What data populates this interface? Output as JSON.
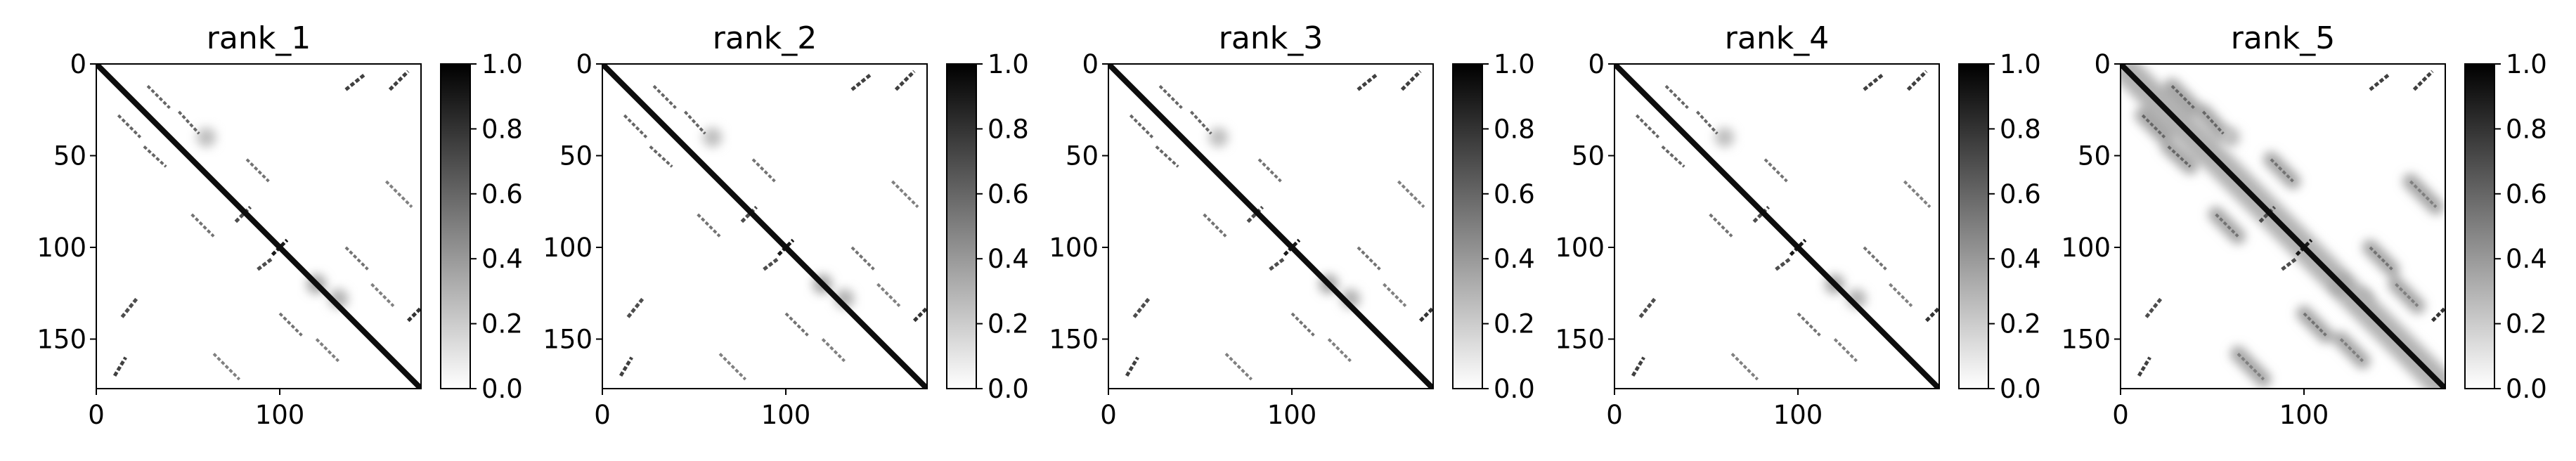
{
  "figure": {
    "background": "#ffffff",
    "colormap": "Greys (white = 0.0, black = 1.0)"
  },
  "chart_data": [
    {
      "type": "heatmap",
      "title": "rank_1",
      "xlim": [
        0,
        177
      ],
      "ylim": [
        177,
        0
      ],
      "y_inverted": true,
      "xticks": [
        0,
        100
      ],
      "yticks": [
        0,
        50,
        100,
        150
      ],
      "colorbar": {
        "range": [
          0.0,
          1.0
        ],
        "ticks": [
          "0.0",
          "0.2",
          "0.4",
          "0.6",
          "0.8",
          "1.0"
        ]
      },
      "diffuse_contacts": false
    },
    {
      "type": "heatmap",
      "title": "rank_2",
      "xlim": [
        0,
        177
      ],
      "ylim": [
        177,
        0
      ],
      "y_inverted": true,
      "xticks": [
        0,
        100
      ],
      "yticks": [
        0,
        50,
        100,
        150
      ],
      "colorbar": {
        "range": [
          0.0,
          1.0
        ],
        "ticks": [
          "0.0",
          "0.2",
          "0.4",
          "0.6",
          "0.8",
          "1.0"
        ]
      },
      "diffuse_contacts": false
    },
    {
      "type": "heatmap",
      "title": "rank_3",
      "xlim": [
        0,
        177
      ],
      "ylim": [
        177,
        0
      ],
      "y_inverted": true,
      "xticks": [
        0,
        100
      ],
      "yticks": [
        0,
        50,
        100,
        150
      ],
      "colorbar": {
        "range": [
          0.0,
          1.0
        ],
        "ticks": [
          "0.0",
          "0.2",
          "0.4",
          "0.6",
          "0.8",
          "1.0"
        ]
      },
      "diffuse_contacts": false
    },
    {
      "type": "heatmap",
      "title": "rank_4",
      "xlim": [
        0,
        177
      ],
      "ylim": [
        177,
        0
      ],
      "y_inverted": true,
      "xticks": [
        0,
        100
      ],
      "yticks": [
        0,
        50,
        100,
        150
      ],
      "colorbar": {
        "range": [
          0.0,
          1.0
        ],
        "ticks": [
          "0.0",
          "0.2",
          "0.4",
          "0.6",
          "0.8",
          "1.0"
        ]
      },
      "diffuse_contacts": false
    },
    {
      "type": "heatmap",
      "title": "rank_5",
      "xlim": [
        0,
        177
      ],
      "ylim": [
        177,
        0
      ],
      "y_inverted": true,
      "xticks": [
        0,
        100
      ],
      "yticks": [
        0,
        50,
        100,
        150
      ],
      "colorbar": {
        "range": [
          0.0,
          1.0
        ],
        "ticks": [
          "0.0",
          "0.2",
          "0.4",
          "0.6",
          "0.8",
          "1.0"
        ]
      },
      "diffuse_contacts": true
    }
  ],
  "contact_features": {
    "diagonal": [
      [
        0,
        177,
        0.95
      ]
    ],
    "antidiagonal_bands": [
      [
        [
          10,
          170
        ],
        [
          16,
          160
        ],
        0.75
      ],
      [
        [
          14,
          138
        ],
        [
          22,
          128
        ],
        0.7
      ],
      [
        [
          136,
          14
        ],
        [
          146,
          6
        ],
        0.75
      ],
      [
        [
          160,
          14
        ],
        [
          170,
          4
        ],
        0.75
      ],
      [
        [
          170,
          140
        ],
        [
          177,
          133
        ],
        0.8
      ],
      [
        [
          96,
          104
        ],
        [
          104,
          96
        ],
        0.9
      ],
      [
        [
          76,
          86
        ],
        [
          84,
          78
        ],
        0.7
      ],
      [
        [
          88,
          112
        ],
        [
          96,
          106
        ],
        0.7
      ]
    ],
    "parallel_bands": [
      [
        [
          12,
          28
        ],
        [
          24,
          40
        ],
        0.6
      ],
      [
        [
          28,
          12
        ],
        [
          40,
          24
        ],
        0.6
      ],
      [
        [
          26,
          45
        ],
        [
          38,
          56
        ],
        0.6
      ],
      [
        [
          45,
          26
        ],
        [
          56,
          38
        ],
        0.6
      ],
      [
        [
          52,
          82
        ],
        [
          64,
          94
        ],
        0.55
      ],
      [
        [
          82,
          52
        ],
        [
          94,
          64
        ],
        0.55
      ],
      [
        [
          100,
          136
        ],
        [
          112,
          148
        ],
        0.55
      ],
      [
        [
          136,
          100
        ],
        [
          148,
          112
        ],
        0.55
      ],
      [
        [
          120,
          150
        ],
        [
          132,
          162
        ],
        0.5
      ],
      [
        [
          150,
          120
        ],
        [
          162,
          132
        ],
        0.5
      ],
      [
        [
          158,
          64
        ],
        [
          172,
          78
        ],
        0.5
      ],
      [
        [
          64,
          158
        ],
        [
          78,
          172
        ],
        0.5
      ]
    ],
    "diffuse_blobs": [
      [
        120,
        120,
        0.35
      ],
      [
        132,
        128,
        0.3
      ],
      [
        60,
        40,
        0.25
      ]
    ]
  }
}
